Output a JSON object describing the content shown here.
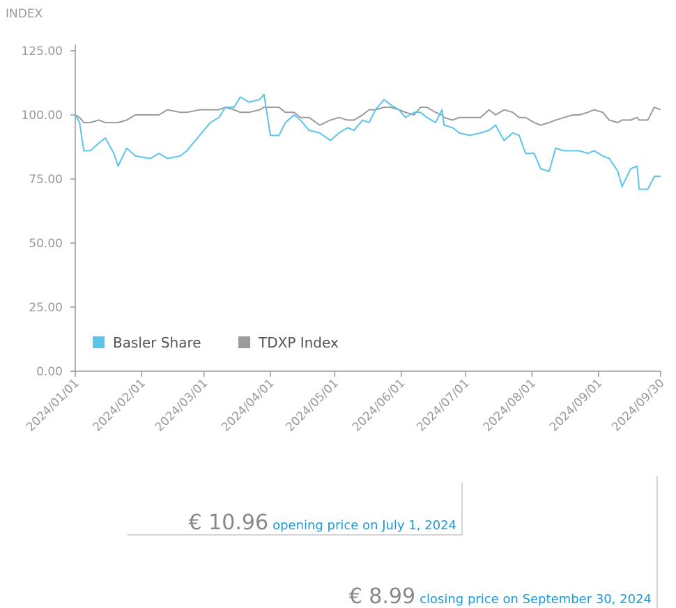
{
  "chart_data": {
    "type": "line",
    "y_axis_label": "INDEX",
    "x": [
      "2024/01/01",
      "2024/01/03",
      "2024/01/05",
      "2024/01/08",
      "2024/01/12",
      "2024/01/15",
      "2024/01/19",
      "2024/01/21",
      "2024/01/25",
      "2024/01/29",
      "2024/02/05",
      "2024/02/09",
      "2024/02/13",
      "2024/02/19",
      "2024/02/22",
      "2024/02/28",
      "2024/03/04",
      "2024/03/08",
      "2024/03/11",
      "2024/03/15",
      "2024/03/18",
      "2024/03/22",
      "2024/03/27",
      "2024/03/29",
      "2024/04/01",
      "2024/04/05",
      "2024/04/08",
      "2024/04/12",
      "2024/04/15",
      "2024/04/19",
      "2024/04/24",
      "2024/04/29",
      "2024/05/03",
      "2024/05/07",
      "2024/05/10",
      "2024/05/14",
      "2024/05/17",
      "2024/05/20",
      "2024/05/24",
      "2024/05/27",
      "2024/05/31",
      "2024/06/03",
      "2024/06/07",
      "2024/06/10",
      "2024/06/13",
      "2024/06/17",
      "2024/06/20",
      "2024/06/21",
      "2024/06/25",
      "2024/06/28",
      "2024/07/03",
      "2024/07/08",
      "2024/07/12",
      "2024/07/15",
      "2024/07/19",
      "2024/07/23",
      "2024/07/26",
      "2024/07/29",
      "2024/08/02",
      "2024/08/05",
      "2024/08/09",
      "2024/08/12",
      "2024/08/16",
      "2024/08/20",
      "2024/08/23",
      "2024/08/27",
      "2024/08/30",
      "2024/09/03",
      "2024/09/06",
      "2024/09/10",
      "2024/09/12",
      "2024/09/16",
      "2024/09/19",
      "2024/09/20",
      "2024/09/24",
      "2024/09/27",
      "2024/09/30"
    ],
    "series": [
      {
        "name": "Basler Share",
        "color": "#5bc4ea",
        "values": [
          100,
          97,
          86,
          86,
          89,
          91,
          85,
          80,
          87,
          84,
          83,
          85,
          83,
          84,
          86,
          92,
          97,
          99,
          103,
          103,
          107,
          105,
          106,
          108,
          92,
          92,
          97,
          100,
          98,
          94,
          93,
          90,
          93,
          95,
          94,
          98,
          97,
          102,
          106,
          104,
          102,
          99,
          101,
          101,
          99,
          97,
          102,
          96,
          95,
          93,
          92,
          93,
          94,
          96,
          90,
          93,
          92,
          85,
          85,
          79,
          78,
          87,
          86,
          86,
          86,
          85,
          86,
          84,
          83,
          78,
          72,
          79,
          80,
          71,
          71,
          76,
          76
        ]
      },
      {
        "name": "TDXP Index",
        "color": "#9b9b9b",
        "values": [
          100,
          99,
          97,
          97,
          98,
          97,
          97,
          97,
          98,
          100,
          100,
          100,
          102,
          101,
          101,
          102,
          102,
          102,
          103,
          102,
          101,
          101,
          102,
          103,
          103,
          103,
          101,
          101,
          99,
          99,
          96,
          98,
          99,
          98,
          98,
          100,
          102,
          102,
          103,
          103,
          102,
          101,
          100,
          103,
          103,
          101,
          100,
          99,
          98,
          99,
          99,
          99,
          102,
          100,
          102,
          101,
          99,
          99,
          97,
          96,
          97,
          98,
          99,
          100,
          100,
          101,
          102,
          101,
          98,
          97,
          98,
          98,
          99,
          98,
          98,
          103,
          102
        ]
      }
    ],
    "xlim": [
      "2024/01/01",
      "2024/09/30"
    ],
    "xticks": [
      "2024/01/01",
      "2024/02/01",
      "2024/03/01",
      "2024/04/01",
      "2024/05/01",
      "2024/06/01",
      "2024/07/01",
      "2024/08/01",
      "2024/09/01",
      "2024/09/30"
    ],
    "ylim": [
      0,
      125
    ],
    "yticks": [
      {
        "value": 0,
        "label": "0.00"
      },
      {
        "value": 25,
        "label": "25.00"
      },
      {
        "value": 50,
        "label": "50.00"
      },
      {
        "value": 75,
        "label": "75.00"
      },
      {
        "value": 100,
        "label": "100.00"
      },
      {
        "value": 125,
        "label": "125.00"
      }
    ],
    "legend": "lower left",
    "annotations": [
      {
        "price": "€ 10.96",
        "text": "opening price on July 1, 2024"
      },
      {
        "price": "€ 8.99",
        "text": "closing price on September 30, 2024"
      }
    ]
  }
}
